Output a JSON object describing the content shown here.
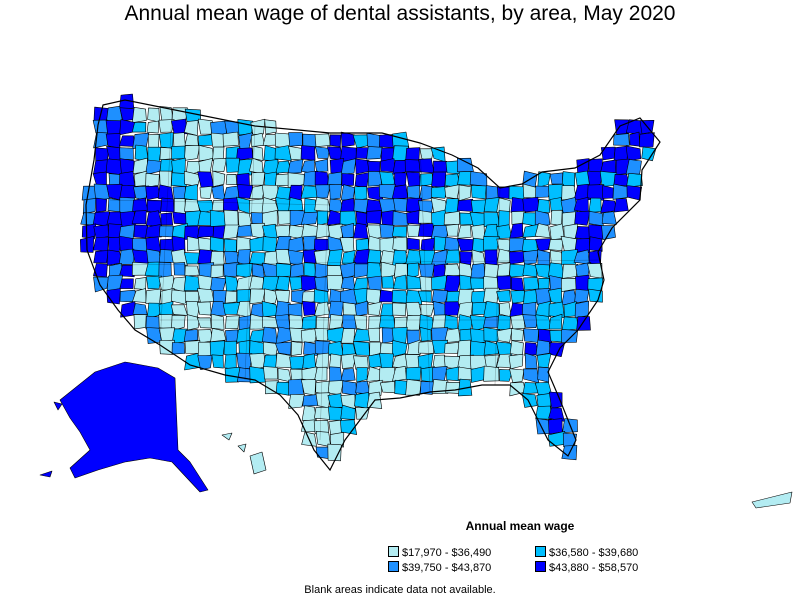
{
  "title": "Annual mean wage of dental assistants, by area, May 2020",
  "legend": {
    "title": "Annual mean wage",
    "bins": [
      {
        "label": "$17,970 - $36,490",
        "color": "#b3ecf2"
      },
      {
        "label": "$36,580 - $39,680",
        "color": "#00bfff"
      },
      {
        "label": "$39,750 - $43,870",
        "color": "#1e90ff"
      },
      {
        "label": "$43,880 - $58,570",
        "color": "#0000ff"
      }
    ]
  },
  "footnote": "Blank areas indicate data not available.",
  "chart_data": {
    "type": "choropleth",
    "title": "Annual mean wage of dental assistants, by area, May 2020",
    "legend_title": "Annual mean wage",
    "legend_placement": "bottom-right",
    "categories": [
      "$17,970 - $36,490",
      "$36,580 - $39,680",
      "$39,750 - $43,870",
      "$43,880 - $58,570"
    ],
    "no_data_note": "Blank areas indicate data not available."
  }
}
